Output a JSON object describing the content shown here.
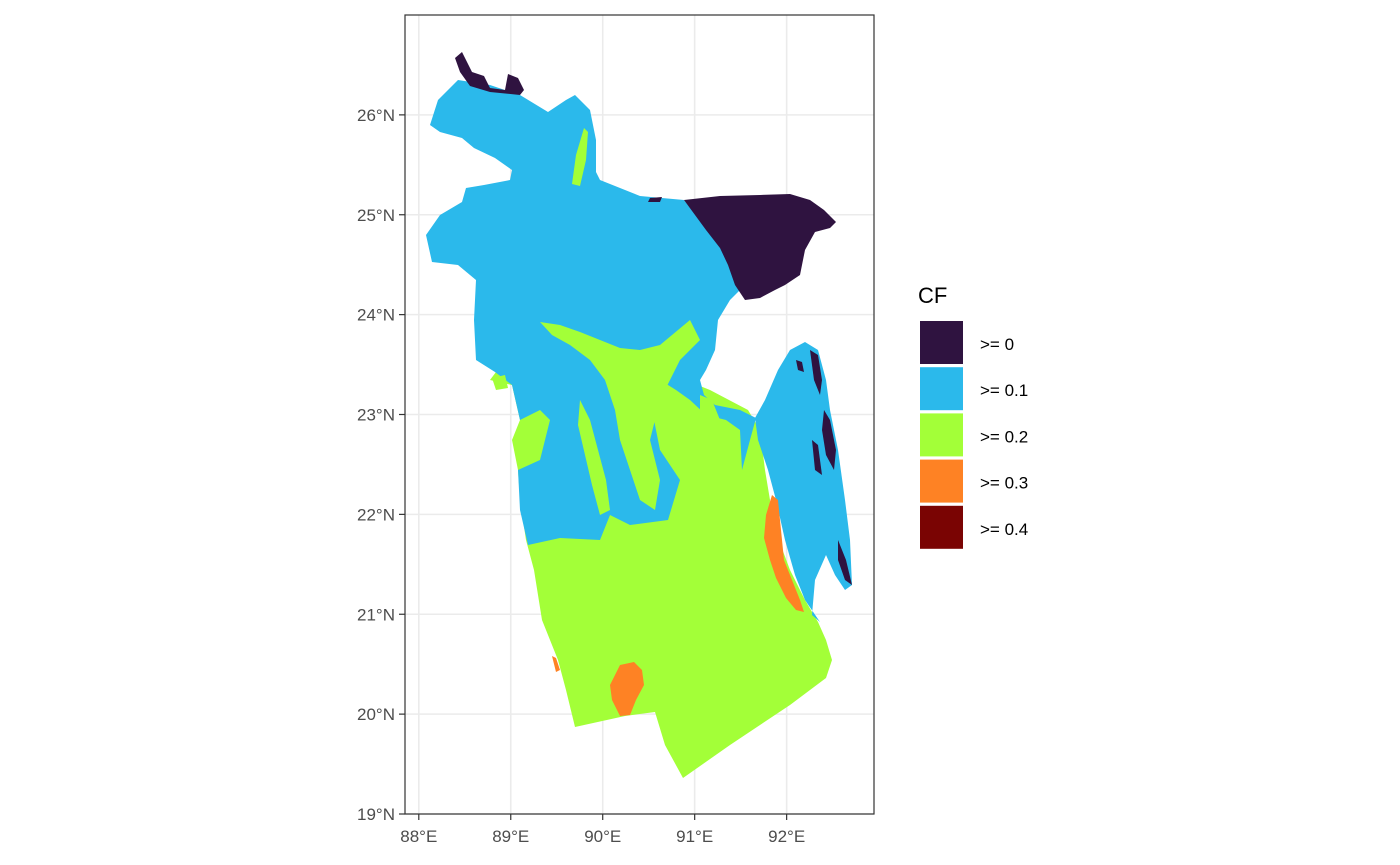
{
  "chart_data": {
    "type": "map",
    "x_axis": {
      "ticks": [
        {
          "value": 88,
          "label": "88°E"
        },
        {
          "value": 89,
          "label": "89°E"
        },
        {
          "value": 90,
          "label": "90°E"
        },
        {
          "value": 91,
          "label": "91°E"
        },
        {
          "value": 92,
          "label": "92°E"
        }
      ],
      "range": [
        87.85,
        92.95
      ]
    },
    "y_axis": {
      "ticks": [
        {
          "value": 19,
          "label": "19°N"
        },
        {
          "value": 20,
          "label": "20°N"
        },
        {
          "value": 21,
          "label": "21°N"
        },
        {
          "value": 22,
          "label": "22°N"
        },
        {
          "value": 23,
          "label": "23°N"
        },
        {
          "value": 24,
          "label": "24°N"
        },
        {
          "value": 25,
          "label": "25°N"
        },
        {
          "value": 26,
          "label": "26°N"
        }
      ],
      "range": [
        19,
        27
      ]
    },
    "grid": true,
    "legend": {
      "title": "CF",
      "position": "right",
      "entries": [
        {
          "label": ">= 0",
          "color": "#2f1340"
        },
        {
          "label": ">= 0.1",
          "color": "#2bb9eb"
        },
        {
          "label": ">= 0.2",
          "color": "#a3ff38"
        },
        {
          "label": ">= 0.3",
          "color": "#fe8224"
        },
        {
          "label": ">= 0.4",
          "color": "#7a0403"
        }
      ]
    }
  }
}
